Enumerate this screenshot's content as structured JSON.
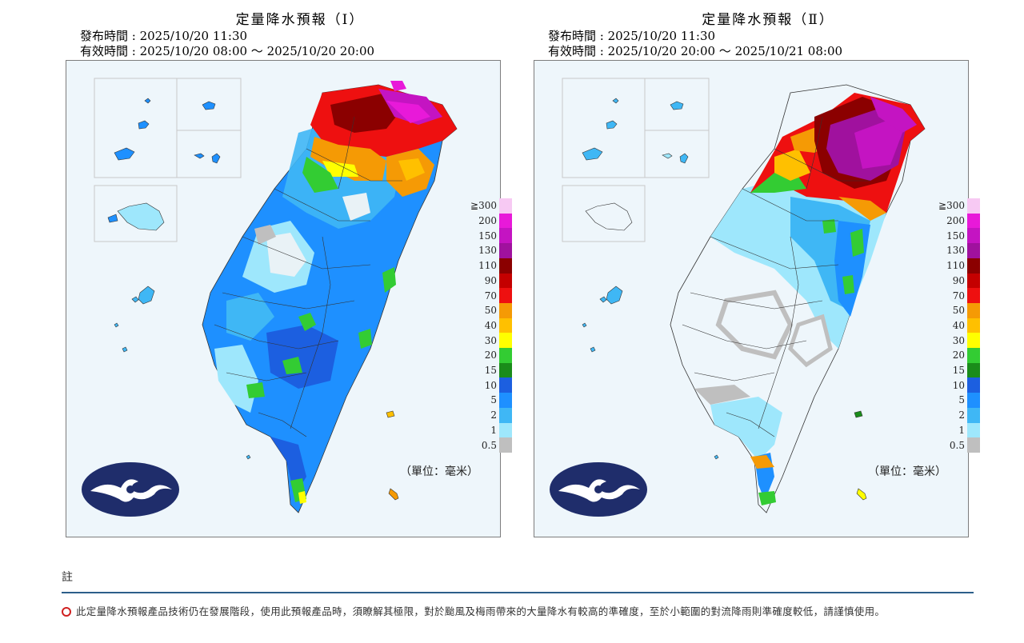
{
  "panels": [
    {
      "title": "定量降水預報（Ⅰ）",
      "issued": "發布時間 : 2025/10/20 11:30",
      "valid": "有效時間 : 2025/10/20 08:00 ～ 2025/10/20 20:00",
      "unit": "（單位：毫米）"
    },
    {
      "title": "定量降水預報（Ⅱ）",
      "issued": "發布時間 : 2025/10/20 11:30",
      "valid": "有效時間 : 2025/10/20 20:00 ～ 2025/10/21 08:00",
      "unit": "（單位：毫米）"
    }
  ],
  "legend": {
    "labels": [
      "≧300",
      "200",
      "150",
      "130",
      "110",
      "90",
      "70",
      "50",
      "40",
      "30",
      "20",
      "15",
      "10",
      "5",
      "2",
      "1",
      "0.5"
    ],
    "colors": [
      "#f7c9f3",
      "#e819d9",
      "#c414c2",
      "#a0119e",
      "#8b0000",
      "#c40000",
      "#ee1010",
      "#f59a05",
      "#ffc000",
      "#ffff00",
      "#33cc33",
      "#1a8c1a",
      "#1c5fe0",
      "#1e90ff",
      "#3fb7f5",
      "#9ee7fc",
      "#bfbfbf"
    ]
  },
  "notes": {
    "heading": "註",
    "items": [
      "此定量降水預報產品技術仍在發展階段，使用此預報產品時，須瞭解其極限，對於颱風及梅雨帶來的大量降水有較高的準確度，至於小範圍的對流降雨則準確度較低，請謹慎使用。"
    ]
  }
}
